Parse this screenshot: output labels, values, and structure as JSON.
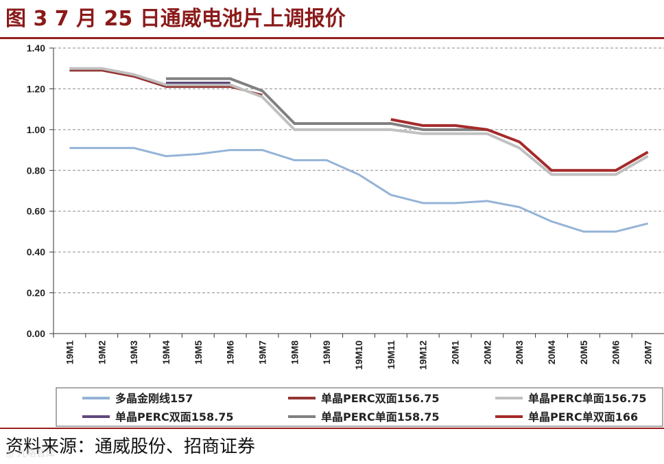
{
  "header": {
    "title": "图 3 7 月 25 日通威电池片上调报价"
  },
  "footer": {
    "source": "资料来源：通威股份、招商证券",
    "watermark": "◎ 九略智库"
  },
  "chart_data": {
    "type": "line",
    "title": "图 3 7 月 25 日通威电池片上调报价",
    "xlabel": "",
    "ylabel": "",
    "ylim": [
      0,
      1.4
    ],
    "yticks": [
      "0.00",
      "0.20",
      "0.40",
      "0.60",
      "0.80",
      "1.00",
      "1.20",
      "1.40"
    ],
    "grid": true,
    "legend_position": "bottom",
    "categories": [
      "19M1",
      "19M2",
      "19M3",
      "19M4",
      "19M5",
      "19M6",
      "19M7",
      "19M8",
      "19M9",
      "19M10",
      "19M11",
      "19M12",
      "20M1",
      "20M2",
      "20M3",
      "20M4",
      "20M5",
      "20M6",
      "20M7"
    ],
    "series": [
      {
        "name": "多晶金刚线157",
        "color": "#95b3d7",
        "width": 3,
        "values": [
          0.91,
          0.91,
          0.91,
          0.87,
          0.88,
          0.9,
          0.9,
          0.85,
          0.85,
          0.78,
          0.68,
          0.64,
          0.64,
          0.65,
          0.62,
          0.55,
          0.5,
          0.5,
          0.54
        ]
      },
      {
        "name": "单晶PERC双面156.75",
        "color": "#943634",
        "width": 3,
        "values": [
          1.29,
          1.29,
          1.26,
          1.21,
          1.21,
          1.21,
          1.17,
          null,
          null,
          null,
          null,
          null,
          null,
          null,
          null,
          null,
          null,
          null,
          null
        ]
      },
      {
        "name": "单晶PERC单面156.75",
        "color": "#c0c0c0",
        "width": 4,
        "values": [
          1.3,
          1.3,
          1.27,
          1.22,
          1.22,
          1.22,
          1.16,
          1.0,
          1.0,
          1.0,
          1.0,
          0.98,
          0.98,
          0.98,
          0.91,
          0.78,
          0.78,
          0.78,
          0.87
        ]
      },
      {
        "name": "单晶PERC双面158.75",
        "color": "#60497a",
        "width": 3,
        "values": [
          null,
          null,
          null,
          1.23,
          1.23,
          1.23,
          null,
          null,
          null,
          null,
          null,
          null,
          null,
          null,
          null,
          null,
          null,
          null,
          null
        ]
      },
      {
        "name": "单晶PERC单面158.75",
        "color": "#808080",
        "width": 4,
        "values": [
          null,
          null,
          null,
          1.25,
          1.25,
          1.25,
          1.19,
          1.03,
          1.03,
          1.03,
          1.03,
          1.0,
          1.0,
          1.0,
          null,
          null,
          null,
          null,
          null
        ]
      },
      {
        "name": "单晶PERC单双面166",
        "color": "#a52a2a",
        "width": 4,
        "values": [
          null,
          null,
          null,
          null,
          null,
          null,
          null,
          null,
          null,
          null,
          1.05,
          1.02,
          1.02,
          1.0,
          0.94,
          0.8,
          0.8,
          0.8,
          0.89
        ]
      }
    ]
  }
}
